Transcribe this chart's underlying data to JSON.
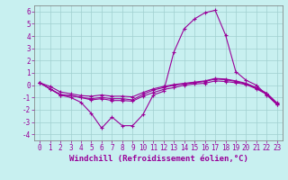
{
  "xlabel": "Windchill (Refroidissement éolien,°C)",
  "background_color": "#c8f0f0",
  "grid_color": "#a0d0d0",
  "line_color": "#990099",
  "xlim": [
    -0.5,
    23.5
  ],
  "ylim": [
    -4.5,
    6.5
  ],
  "xticks": [
    0,
    1,
    2,
    3,
    4,
    5,
    6,
    7,
    8,
    9,
    10,
    11,
    12,
    13,
    14,
    15,
    16,
    17,
    18,
    19,
    20,
    21,
    22,
    23
  ],
  "yticks": [
    -4,
    -3,
    -2,
    -1,
    0,
    1,
    2,
    3,
    4,
    5,
    6
  ],
  "line1_y": [
    0.2,
    -0.3,
    -0.8,
    -1.0,
    -1.4,
    -2.3,
    -3.5,
    -2.6,
    -3.3,
    -3.3,
    -2.4,
    -0.8,
    -0.5,
    2.7,
    4.6,
    5.4,
    5.9,
    6.1,
    4.1,
    1.1,
    0.4,
    0.0,
    -0.8,
    -1.6
  ],
  "line2_y": [
    0.2,
    -0.3,
    -0.8,
    -0.85,
    -1.0,
    -1.2,
    -1.1,
    -1.25,
    -1.25,
    -1.3,
    -0.9,
    -0.6,
    -0.35,
    -0.2,
    0.0,
    0.1,
    0.15,
    0.35,
    0.3,
    0.2,
    0.05,
    -0.3,
    -0.75,
    -1.55
  ],
  "line3_y": [
    0.2,
    -0.3,
    -0.75,
    -0.85,
    -1.0,
    -1.1,
    -1.0,
    -1.1,
    -1.1,
    -1.2,
    -0.75,
    -0.4,
    -0.2,
    0.0,
    0.1,
    0.2,
    0.3,
    0.5,
    0.45,
    0.3,
    0.1,
    -0.25,
    -0.7,
    -1.5
  ],
  "line4_y": [
    0.2,
    -0.1,
    -0.55,
    -0.7,
    -0.85,
    -0.9,
    -0.8,
    -0.9,
    -0.9,
    -0.95,
    -0.6,
    -0.3,
    -0.1,
    0.05,
    0.15,
    0.25,
    0.35,
    0.55,
    0.5,
    0.35,
    0.15,
    -0.2,
    -0.65,
    -1.45
  ],
  "marker": "+",
  "markersize": 3,
  "linewidth": 0.8,
  "xlabel_fontsize": 6.5,
  "tick_fontsize": 5.5
}
